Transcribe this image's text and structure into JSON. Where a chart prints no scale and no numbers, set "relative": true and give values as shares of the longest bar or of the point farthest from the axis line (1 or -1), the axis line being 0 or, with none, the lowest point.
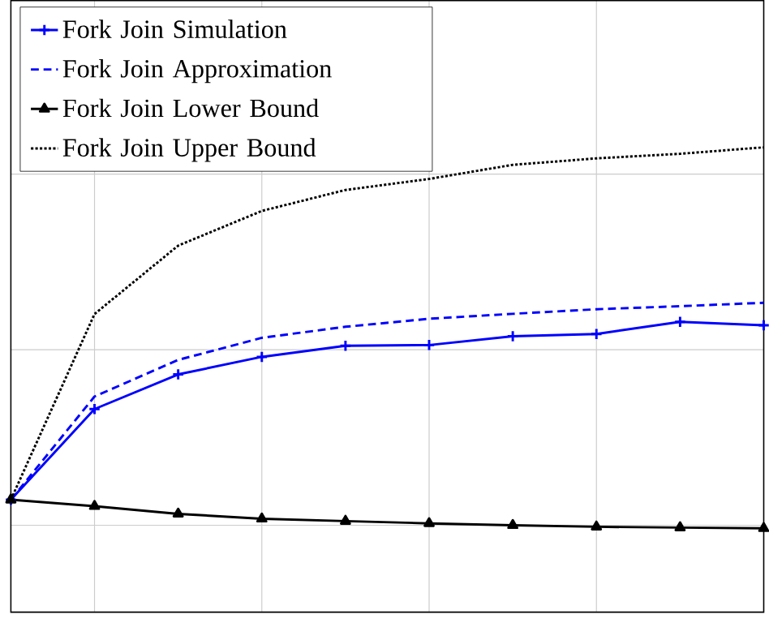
{
  "chart_data": {
    "type": "line",
    "relative": true,
    "grid": true,
    "legend": "top left",
    "categories": [
      null,
      null,
      null,
      null,
      null,
      null,
      null,
      null,
      null,
      null
    ],
    "series": [
      {
        "name": "Fork Join Simulation",
        "color": "#0000ff",
        "marker": "cross",
        "line_style": "solid",
        "values": [
          0.075,
          0.313,
          0.404,
          0.45,
          0.479,
          0.481,
          0.504,
          0.51,
          0.542,
          0.533
        ]
      },
      {
        "name": "Fork Join Approximation",
        "color": "#0000ff",
        "marker": "none",
        "line_style": "dashed",
        "values": [
          0.075,
          0.346,
          0.442,
          0.5,
          0.529,
          0.55,
          0.563,
          0.575,
          0.583,
          0.592
        ]
      },
      {
        "name": "Fork Join Lower Bound",
        "color": "#000000",
        "marker": "triangle",
        "line_style": "solid",
        "values": [
          0.075,
          0.058,
          0.038,
          0.025,
          0.019,
          0.013,
          0.008,
          0.004,
          0.002,
          0
        ]
      },
      {
        "name": "Fork Join Upper Bound",
        "color": "#000000",
        "marker": "none",
        "line_style": "dotted",
        "values": [
          0.075,
          0.5625,
          0.742,
          0.833,
          0.888,
          0.917,
          0.954,
          0.971,
          0.983,
          1.0
        ]
      }
    ]
  }
}
